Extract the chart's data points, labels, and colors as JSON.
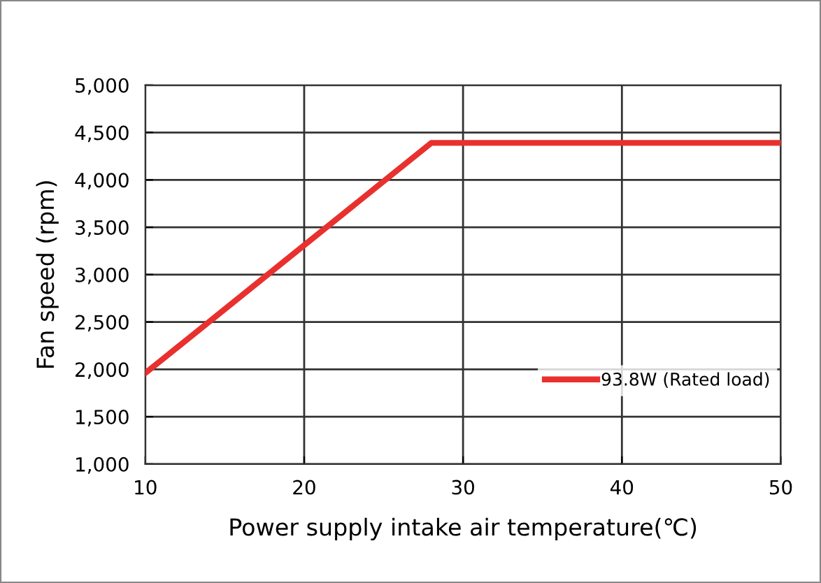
{
  "chart_data": {
    "type": "line",
    "xlabel": "Power supply intake air temperature(℃)",
    "ylabel": "Fan speed (rpm)",
    "x": [
      10,
      28,
      50
    ],
    "series": [
      {
        "name": "93.8W (Rated load)",
        "color": "#e8312f",
        "values": [
          1960,
          4390,
          4390
        ]
      }
    ],
    "xlim": [
      10,
      50
    ],
    "xticks": [
      10,
      20,
      30,
      40,
      50
    ],
    "ylim": [
      1000,
      5000
    ],
    "yticks": [
      {
        "value": 1000,
        "label": "1,000"
      },
      {
        "value": 1500,
        "label": "1,500"
      },
      {
        "value": 2000,
        "label": "2,000"
      },
      {
        "value": 2500,
        "label": "2,500"
      },
      {
        "value": 3000,
        "label": "3,000"
      },
      {
        "value": 3500,
        "label": "3,500"
      },
      {
        "value": 4000,
        "label": "4,000"
      },
      {
        "value": 4500,
        "label": "4,500"
      },
      {
        "value": 5000,
        "label": "5,000"
      }
    ],
    "grid": true,
    "legend": "lower right",
    "marker": "none",
    "line_style": "solid"
  }
}
